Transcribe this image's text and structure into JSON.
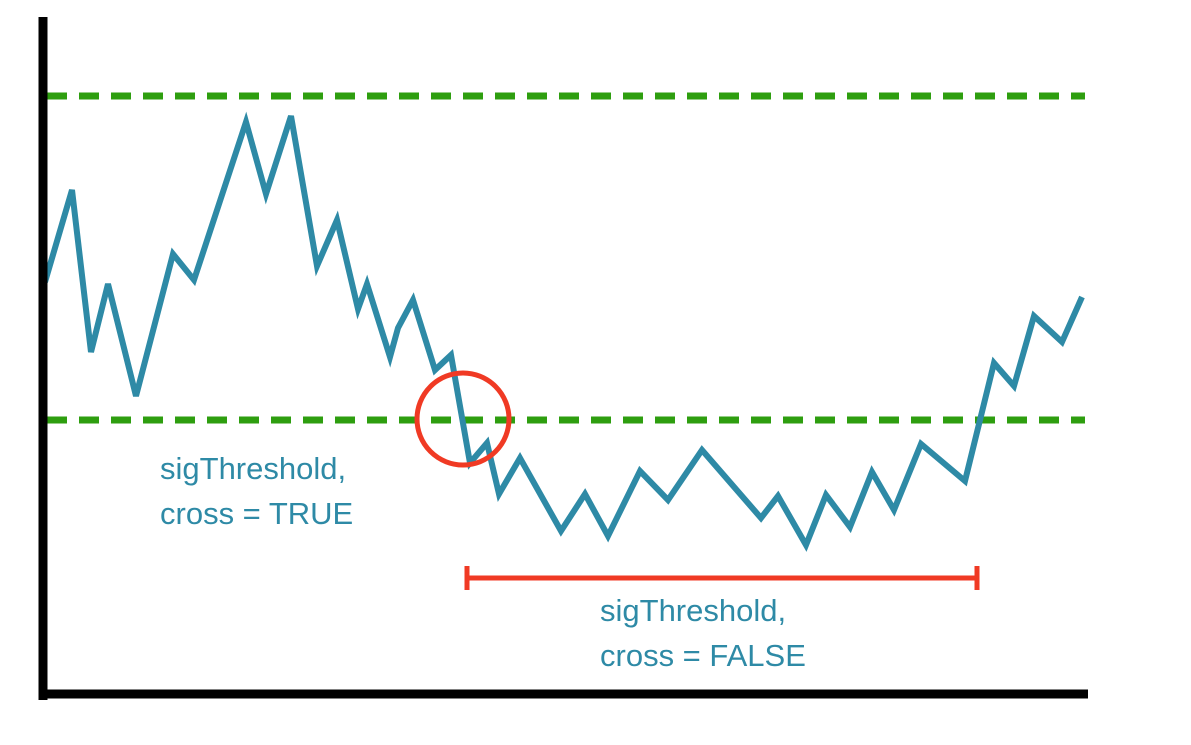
{
  "labels": {
    "cross_true": {
      "line1": "sigThreshold,",
      "line2": "cross = TRUE"
    },
    "cross_false": {
      "line1": "sigThreshold,",
      "line2": "cross = FALSE"
    }
  },
  "colors": {
    "signal_line": "#2e8aa6",
    "threshold_lines": "#2e9e0f",
    "highlight": "#f03a24",
    "axes": "#000000",
    "label_text": "#2e8aa6"
  }
}
